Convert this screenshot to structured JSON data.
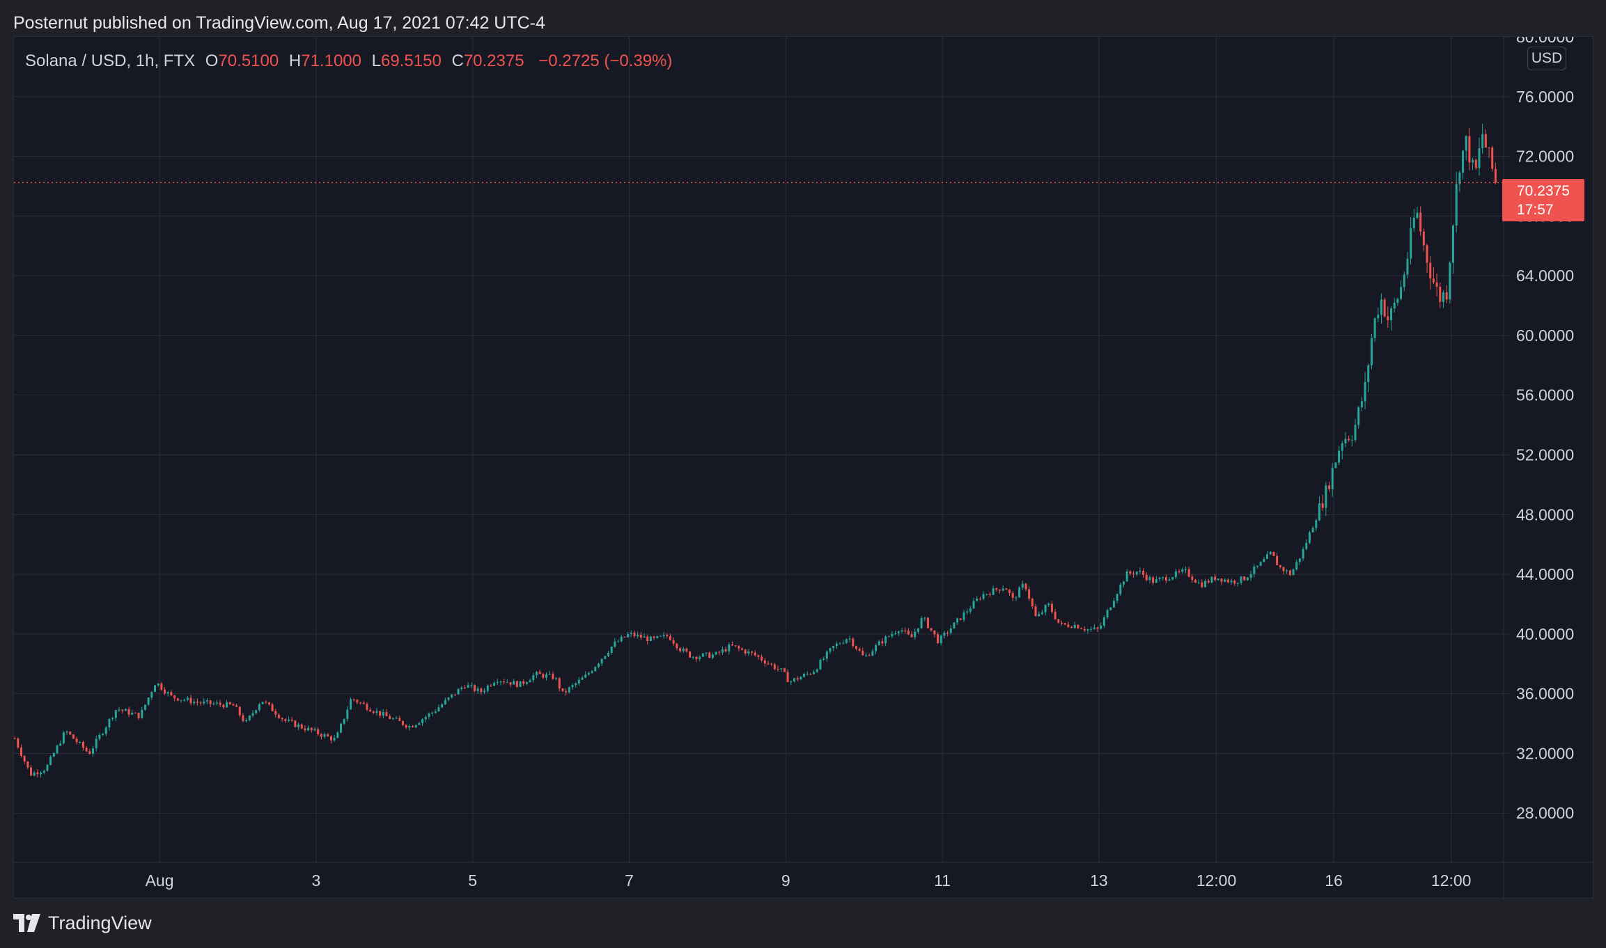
{
  "header": {
    "published_text": "Posternut published on TradingView.com, Aug 17, 2021 07:42 UTC-4"
  },
  "legend": {
    "symbol": "Solana / USD, 1h, FTX",
    "open_label": "O",
    "open": "70.5100",
    "high_label": "H",
    "high": "71.1000",
    "low_label": "L",
    "low": "69.5150",
    "close_label": "C",
    "close": "70.2375",
    "change": "−0.2725 (−0.39%)"
  },
  "currency_badge": "USD",
  "price_tag": {
    "price": "70.2375",
    "countdown": "17:57"
  },
  "footer": {
    "brand": "TradingView"
  },
  "colors": {
    "background": "#161923",
    "grid": "#2a2e39",
    "up": "#26a69a",
    "down": "#ef5350",
    "text": "#d1d4dc"
  },
  "chart_data": {
    "type": "candlestick",
    "title": "Solana / USD, 1h, FTX",
    "xlabel": "",
    "ylabel": "",
    "ylim": [
      24.7,
      80.0
    ],
    "y_ticks": [
      "28.0000",
      "32.0000",
      "36.0000",
      "40.0000",
      "44.0000",
      "48.0000",
      "52.0000",
      "56.0000",
      "60.0000",
      "64.0000",
      "68.0000",
      "72.0000",
      "76.0000",
      "80.0000"
    ],
    "x_ticks": [
      {
        "label": "Aug",
        "t": 0.0
      },
      {
        "label": "3",
        "t": 2.0
      },
      {
        "label": "5",
        "t": 4.0
      },
      {
        "label": "7",
        "t": 6.0
      },
      {
        "label": "9",
        "t": 8.0
      },
      {
        "label": "11",
        "t": 10.0
      },
      {
        "label": "13",
        "t": 12.0
      },
      {
        "label": "12:00",
        "t": 13.5
      },
      {
        "label": "16",
        "t": 15.0
      },
      {
        "label": "12:00",
        "t": 16.5
      }
    ],
    "t_range": [
      -1.86,
      17.17
    ],
    "grid": true,
    "last_price": 70.2375,
    "keypoints": [
      [
        -1.85,
        33.0
      ],
      [
        -1.65,
        30.6
      ],
      [
        -1.45,
        31.0
      ],
      [
        -1.2,
        33.5
      ],
      [
        -0.9,
        32.0
      ],
      [
        -0.55,
        35.0
      ],
      [
        -0.25,
        34.5
      ],
      [
        -0.05,
        36.8
      ],
      [
        0.15,
        35.8
      ],
      [
        0.5,
        35.4
      ],
      [
        0.95,
        35.2
      ],
      [
        1.1,
        34.0
      ],
      [
        1.3,
        35.6
      ],
      [
        1.6,
        34.2
      ],
      [
        2.0,
        33.4
      ],
      [
        2.25,
        32.9
      ],
      [
        2.45,
        35.7
      ],
      [
        2.8,
        34.7
      ],
      [
        3.2,
        33.8
      ],
      [
        3.5,
        34.8
      ],
      [
        3.9,
        36.6
      ],
      [
        4.1,
        36.1
      ],
      [
        4.3,
        37.0
      ],
      [
        4.6,
        36.6
      ],
      [
        4.8,
        37.3
      ],
      [
        5.05,
        37.1
      ],
      [
        5.15,
        36.0
      ],
      [
        5.45,
        37.2
      ],
      [
        5.8,
        39.3
      ],
      [
        6.0,
        40.0
      ],
      [
        6.3,
        39.6
      ],
      [
        6.5,
        39.9
      ],
      [
        6.65,
        39.0
      ],
      [
        6.8,
        38.5
      ],
      [
        7.1,
        38.6
      ],
      [
        7.3,
        39.2
      ],
      [
        7.6,
        38.6
      ],
      [
        7.95,
        37.5
      ],
      [
        8.05,
        36.8
      ],
      [
        8.35,
        37.5
      ],
      [
        8.6,
        39.1
      ],
      [
        8.8,
        39.8
      ],
      [
        9.0,
        38.4
      ],
      [
        9.2,
        39.4
      ],
      [
        9.45,
        40.4
      ],
      [
        9.6,
        39.7
      ],
      [
        9.75,
        41.1
      ],
      [
        9.95,
        39.5
      ],
      [
        10.25,
        41.2
      ],
      [
        10.5,
        42.6
      ],
      [
        10.8,
        43.2
      ],
      [
        10.9,
        42.3
      ],
      [
        11.05,
        43.4
      ],
      [
        11.2,
        41.0
      ],
      [
        11.35,
        42.0
      ],
      [
        11.5,
        40.6
      ],
      [
        11.7,
        40.6
      ],
      [
        11.85,
        40.3
      ],
      [
        12.0,
        40.3
      ],
      [
        12.2,
        42.5
      ],
      [
        12.35,
        44.0
      ],
      [
        12.5,
        44.2
      ],
      [
        12.7,
        43.5
      ],
      [
        13.1,
        44.2
      ],
      [
        13.3,
        43.3
      ],
      [
        13.5,
        43.8
      ],
      [
        13.7,
        43.5
      ],
      [
        13.85,
        43.7
      ],
      [
        14.05,
        44.6
      ],
      [
        14.2,
        45.4
      ],
      [
        14.3,
        44.5
      ],
      [
        14.45,
        44.0
      ],
      [
        14.6,
        45.5
      ],
      [
        14.75,
        47.5
      ],
      [
        14.9,
        49.5
      ],
      [
        15.1,
        53.0
      ],
      [
        15.25,
        53.5
      ],
      [
        15.4,
        56.5
      ],
      [
        15.5,
        60.5
      ],
      [
        15.6,
        62.5
      ],
      [
        15.7,
        61.0
      ],
      [
        15.85,
        63.0
      ],
      [
        15.95,
        65.5
      ],
      [
        16.05,
        68.5
      ],
      [
        16.15,
        66.0
      ],
      [
        16.25,
        64.0
      ],
      [
        16.35,
        62.5
      ],
      [
        16.45,
        63.0
      ],
      [
        16.5,
        66.5
      ],
      [
        16.6,
        71.5
      ],
      [
        16.7,
        73.0
      ],
      [
        16.8,
        70.5
      ],
      [
        16.9,
        73.5
      ],
      [
        17.0,
        71.5
      ],
      [
        17.08,
        70.2375
      ]
    ]
  }
}
